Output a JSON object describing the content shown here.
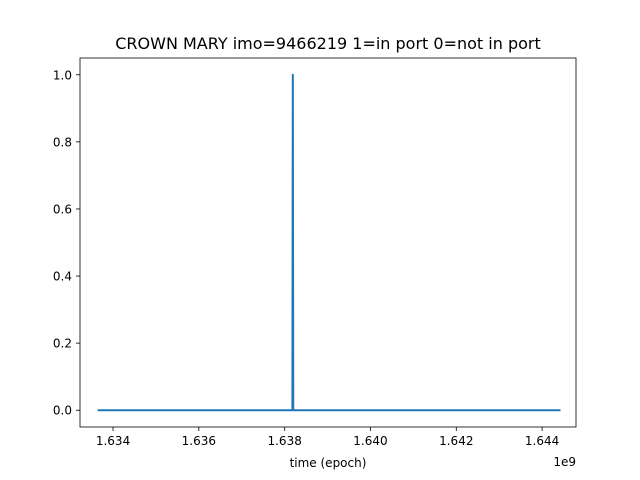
{
  "chart_data": {
    "type": "line",
    "title": "CROWN MARY imo=9466219 1=in port 0=not in port",
    "xlabel": "time (epoch)",
    "ylabel": "",
    "x_offset_text": "1e9",
    "xlim": [
      1.63323,
      1.64479
    ],
    "ylim": [
      -0.05,
      1.05
    ],
    "x_ticks": [
      1.634,
      1.636,
      1.638,
      1.64,
      1.642,
      1.644
    ],
    "x_tick_labels": [
      "1.634",
      "1.636",
      "1.638",
      "1.640",
      "1.642",
      "1.644"
    ],
    "y_ticks": [
      0.0,
      0.2,
      0.4,
      0.6,
      0.8,
      1.0
    ],
    "y_tick_labels": [
      "0.0",
      "0.2",
      "0.4",
      "0.6",
      "0.8",
      "1.0"
    ],
    "grid": false,
    "series": [
      {
        "color": "#1f77b4",
        "x": [
          1.63364,
          1.63818,
          1.63819,
          1.63819,
          1.6382,
          1.64443
        ],
        "y": [
          0,
          0,
          1,
          1,
          0,
          0
        ]
      }
    ]
  }
}
